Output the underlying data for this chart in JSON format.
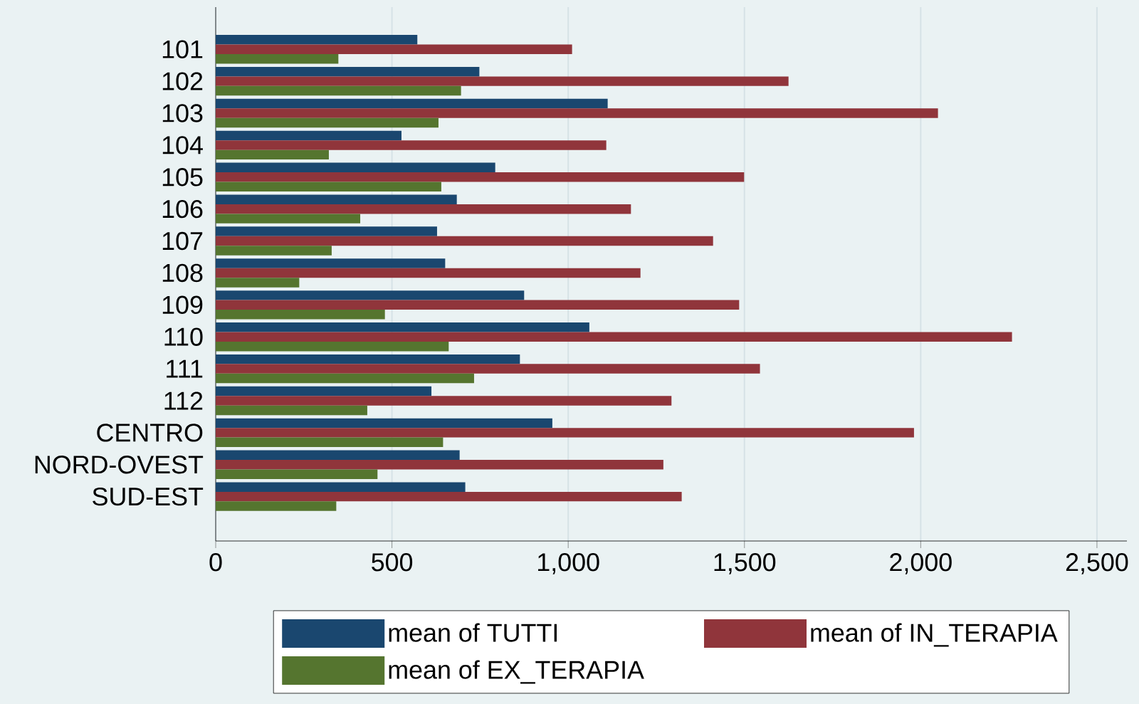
{
  "chart_data": {
    "type": "bar",
    "orientation": "horizontal",
    "categories": [
      "101",
      "102",
      "103",
      "104",
      "105",
      "106",
      "107",
      "108",
      "109",
      "110",
      "111",
      "112",
      "CENTRO",
      "NORD-OVEST",
      "SUD-EST"
    ],
    "series": [
      {
        "name": "mean of TUTTI",
        "color": "#1a476f",
        "values": [
          572,
          748,
          1112,
          527,
          793,
          684,
          628,
          651,
          875,
          1060,
          863,
          612,
          955,
          692,
          708
        ]
      },
      {
        "name": "mean of IN_TERAPIA",
        "color": "#90353b",
        "values": [
          1011,
          1625,
          2049,
          1108,
          1499,
          1178,
          1411,
          1205,
          1485,
          2259,
          1544,
          1293,
          1981,
          1270,
          1322
        ]
      },
      {
        "name": "mean of EX_TERAPIA",
        "color": "#55752f",
        "values": [
          348,
          696,
          632,
          321,
          640,
          410,
          329,
          237,
          480,
          661,
          733,
          430,
          645,
          459,
          342
        ]
      }
    ],
    "xlim": [
      0,
      2585
    ],
    "xticks": [
      0,
      500,
      {
        "value": 1000,
        "label": "1,000"
      },
      {
        "value": 1500,
        "label": "1,500"
      },
      {
        "value": 2000,
        "label": "2,000"
      },
      {
        "value": 2500,
        "label": "2,500"
      }
    ],
    "grid": "x",
    "legend": "bottom"
  }
}
